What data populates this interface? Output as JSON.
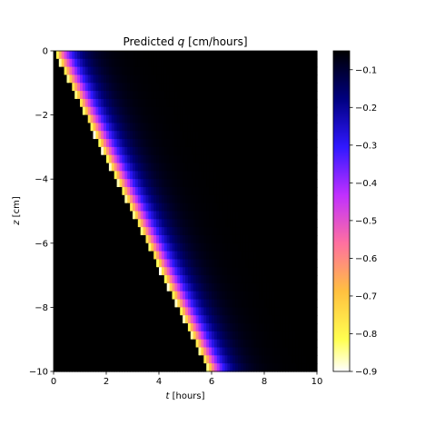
{
  "chart_data": {
    "type": "heatmap",
    "title_prefix": "Predicted ",
    "title_var": "q",
    "title_suffix": " [cm/hours]",
    "xlabel_var": "t",
    "xlabel_suffix": " [hours]",
    "ylabel_var": "z",
    "ylabel_suffix": " [cm]",
    "xlim": [
      0,
      10
    ],
    "ylim": [
      -10,
      0
    ],
    "xticks": [
      0,
      2,
      4,
      6,
      8,
      10
    ],
    "xtick_labels": [
      "0",
      "2",
      "4",
      "6",
      "8",
      "10"
    ],
    "yticks": [
      0,
      -2,
      -4,
      -6,
      -8,
      -10
    ],
    "ytick_labels": [
      "0",
      "−2",
      "−4",
      "−6",
      "−8",
      "−10"
    ],
    "colorbar": {
      "min": -0.9,
      "max": -0.05,
      "ticks": [
        -0.1,
        -0.2,
        -0.3,
        -0.4,
        -0.5,
        -0.6,
        -0.7,
        -0.8,
        -0.9
      ],
      "tick_labels": [
        "−0.1",
        "−0.2",
        "−0.3",
        "−0.4",
        "−0.5",
        "−0.6",
        "−0.7",
        "−0.8",
        "−0.9"
      ],
      "colormap": "gnuplot2_r"
    },
    "field": {
      "value_min": -0.9,
      "value_max": -0.05,
      "front_speed_cm_per_hour": 1.7,
      "front_width_cm": 0.9,
      "profile": "q(t,z) = vmax + (vmin - vmax) * exp(-max(0, t*speed - |z|) / width), q = vmax where t*speed < |z|"
    }
  }
}
